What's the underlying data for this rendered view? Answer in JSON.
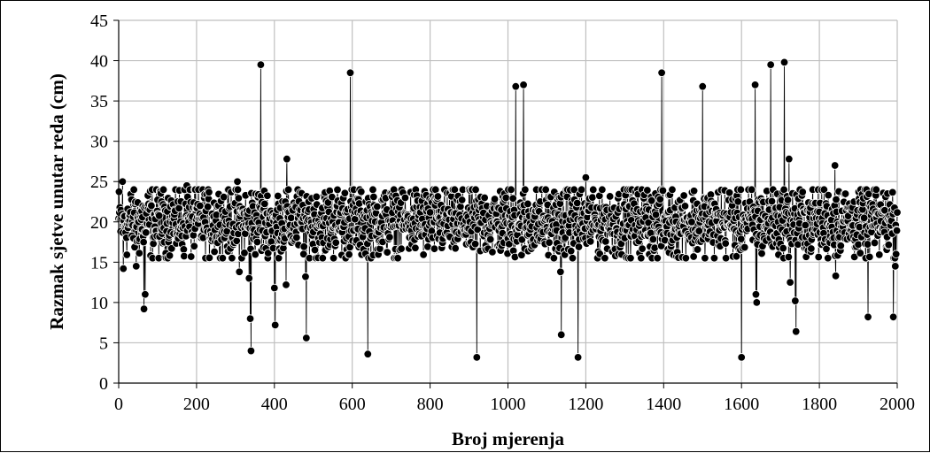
{
  "chart_data": {
    "type": "scatter",
    "title": "",
    "xlabel": "Broj mjerenja",
    "ylabel": "Razmak sjetve unutar reda (cm)",
    "xlim": [
      0,
      2000
    ],
    "ylim": [
      0,
      45
    ],
    "x_ticks": [
      0,
      200,
      400,
      600,
      800,
      1000,
      1200,
      1400,
      1600,
      1800,
      2000
    ],
    "y_ticks": [
      0,
      5,
      10,
      15,
      20,
      25,
      30,
      35,
      40,
      45
    ],
    "grid": true,
    "connected": true,
    "legend": "none",
    "colors": {
      "marker": "#000000",
      "marker_edge": "#ffffff",
      "line": "#000000",
      "grid": "#bfbfbf"
    },
    "series": [
      {
        "baseline_range": [
          14,
          25
        ],
        "baseline_center": 20,
        "n_points": 2000,
        "notable_points": [
          {
            "x": 10,
            "y": 25
          },
          {
            "x": 12,
            "y": 14.2
          },
          {
            "x": 45,
            "y": 14.5
          },
          {
            "x": 65,
            "y": 9.2
          },
          {
            "x": 68,
            "y": 11
          },
          {
            "x": 175,
            "y": 24.5
          },
          {
            "x": 305,
            "y": 25
          },
          {
            "x": 310,
            "y": 13.8
          },
          {
            "x": 335,
            "y": 13
          },
          {
            "x": 338,
            "y": 8
          },
          {
            "x": 340,
            "y": 4
          },
          {
            "x": 365,
            "y": 39.5
          },
          {
            "x": 400,
            "y": 11.8
          },
          {
            "x": 402,
            "y": 7.2
          },
          {
            "x": 430,
            "y": 12.2
          },
          {
            "x": 432,
            "y": 27.8
          },
          {
            "x": 480,
            "y": 13.2
          },
          {
            "x": 482,
            "y": 5.6
          },
          {
            "x": 595,
            "y": 38.5
          },
          {
            "x": 640,
            "y": 3.6
          },
          {
            "x": 920,
            "y": 3.2
          },
          {
            "x": 1020,
            "y": 36.8
          },
          {
            "x": 1040,
            "y": 37
          },
          {
            "x": 1135,
            "y": 13.8
          },
          {
            "x": 1137,
            "y": 6
          },
          {
            "x": 1180,
            "y": 3.2
          },
          {
            "x": 1200,
            "y": 25.5
          },
          {
            "x": 1395,
            "y": 38.5
          },
          {
            "x": 1500,
            "y": 36.8
          },
          {
            "x": 1600,
            "y": 3.2
          },
          {
            "x": 1635,
            "y": 37
          },
          {
            "x": 1637,
            "y": 11
          },
          {
            "x": 1639,
            "y": 10
          },
          {
            "x": 1675,
            "y": 39.5
          },
          {
            "x": 1710,
            "y": 39.8
          },
          {
            "x": 1722,
            "y": 27.8
          },
          {
            "x": 1725,
            "y": 12.5
          },
          {
            "x": 1738,
            "y": 10.2
          },
          {
            "x": 1740,
            "y": 6.4
          },
          {
            "x": 1840,
            "y": 27
          },
          {
            "x": 1842,
            "y": 13.3
          },
          {
            "x": 1925,
            "y": 8.2
          },
          {
            "x": 1990,
            "y": 8.2
          },
          {
            "x": 1995,
            "y": 14.5
          }
        ]
      }
    ]
  }
}
